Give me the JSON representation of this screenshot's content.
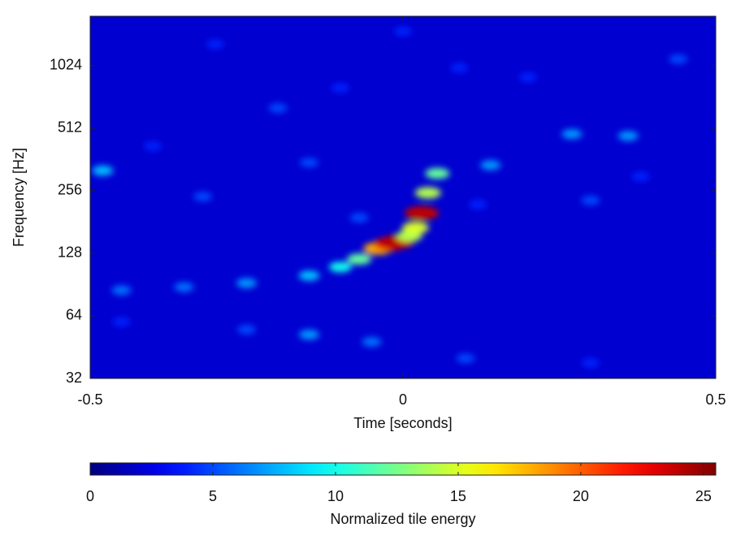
{
  "chart_data": {
    "type": "heatmap",
    "x_label": "Time [seconds]",
    "y_label": "Frequency [Hz]",
    "xlim": [
      -0.5,
      0.5
    ],
    "xticks": [
      -0.5,
      0,
      0.5
    ],
    "ylim": [
      32,
      1770
    ],
    "yticks": [
      32,
      64,
      128,
      256,
      512,
      1024
    ],
    "yscale": "log",
    "colormap": "jet",
    "background_energy": 2,
    "x": [
      -0.48,
      -0.2,
      0.27,
      0.36,
      0.14,
      -0.15,
      0.2,
      -0.3,
      0.09,
      0.44,
      -0.4,
      -0.32,
      0.3,
      -0.07,
      0.12,
      0.0,
      -0.1,
      0.38,
      -0.45,
      -0.25,
      -0.15,
      -0.05,
      0.1,
      0.3,
      -0.45,
      -0.35,
      -0.25,
      -0.15,
      -0.1,
      -0.07,
      -0.04,
      -0.02,
      -0.01,
      0.01,
      0.02,
      0.03,
      0.04,
      0.055
    ],
    "y": [
      320,
      640,
      480,
      470,
      340,
      350,
      900,
      1300,
      1000,
      1100,
      420,
      240,
      230,
      190,
      220,
      1500,
      800,
      300,
      60,
      55,
      52,
      48,
      40,
      38,
      85,
      88,
      92,
      100,
      110,
      120,
      135,
      142,
      145,
      155,
      170,
      200,
      250,
      310
    ],
    "values": [
      8,
      5,
      7,
      7,
      7,
      5,
      4,
      4,
      4,
      5,
      4,
      5,
      5,
      5,
      4,
      4,
      4,
      4,
      4,
      5,
      7,
      6,
      5,
      4,
      6,
      6,
      7,
      8,
      10,
      12,
      18,
      23,
      24,
      14,
      15,
      24,
      14,
      12
    ],
    "colorbar": {
      "label": "Normalized tile energy",
      "lim": [
        0,
        25.5
      ],
      "ticks": [
        0,
        5,
        10,
        15,
        20,
        25
      ]
    }
  }
}
